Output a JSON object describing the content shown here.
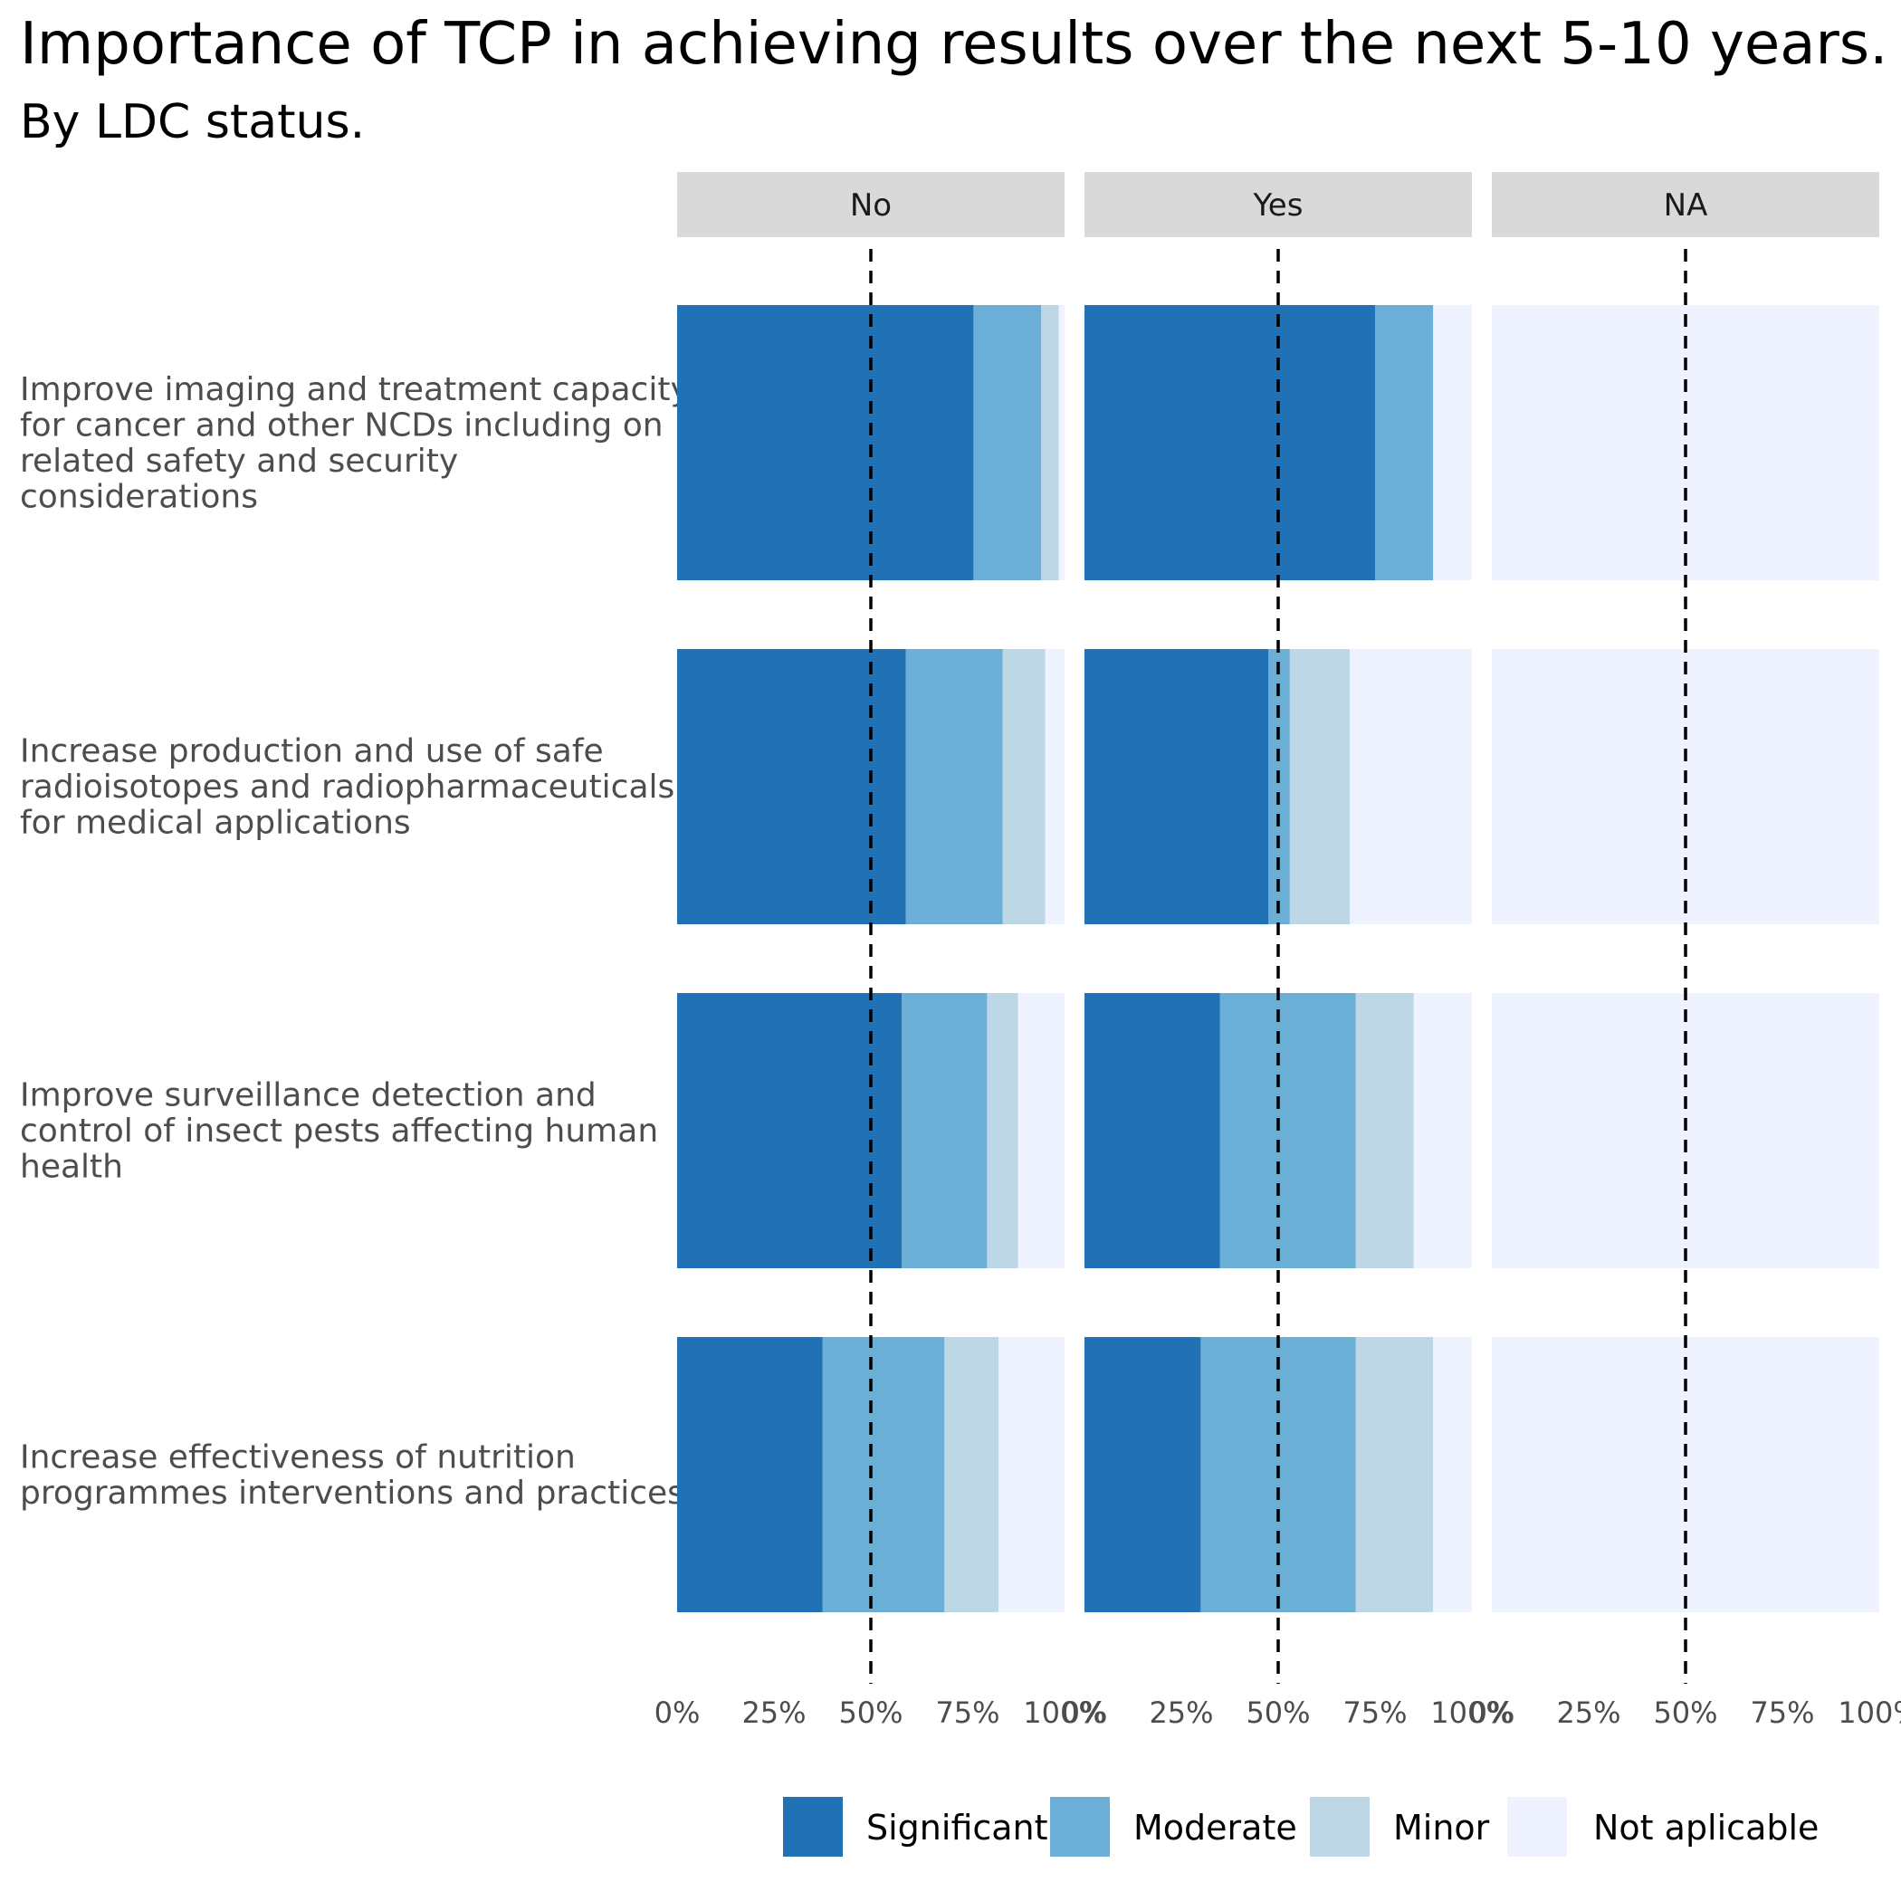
{
  "chart_data": {
    "type": "bar",
    "orientation": "horizontal",
    "stacked": true,
    "title": "Importance of TCP in achieving results over the next 5-10 years.",
    "subtitle": "By LDC status.",
    "facets": [
      "No",
      "Yes",
      "NA"
    ],
    "categories": [
      "Improve imaging and treatment capacity for cancer and other NCDs including on related safety and security considerations",
      "Increase production and use of safe radioisotopes and radiopharmaceuticals for medical applications",
      "Improve surveillance detection and control of insect pests affecting human health",
      "Increase effectiveness of nutrition programmes interventions and practices"
    ],
    "category_label_lines": [
      [
        "Improve imaging and treatment capacity",
        "for cancer and other NCDs including on",
        "related safety and security",
        "considerations"
      ],
      [
        "Increase production and use of safe",
        "radioisotopes and radiopharmaceuticals",
        "for medical applications"
      ],
      [
        "Improve surveillance detection and",
        "control of insect pests affecting human",
        "health"
      ],
      [
        "Increase effectiveness of nutrition",
        "programmes interventions and practices"
      ]
    ],
    "series_names": [
      "Significant",
      "Moderate",
      "Minor",
      "Not aplicable"
    ],
    "colors": [
      "#2171b5",
      "#6baed6",
      "#bdd7e7",
      "#eff3ff"
    ],
    "data": {
      "No": [
        [
          76.5,
          17.5,
          4.5,
          1.5
        ],
        [
          59,
          25,
          11,
          5
        ],
        [
          58,
          22,
          8,
          12
        ],
        [
          37.5,
          31.5,
          14,
          17
        ]
      ],
      "Yes": [
        [
          75,
          15,
          0,
          10
        ],
        [
          47.5,
          5.5,
          15.5,
          31.5
        ],
        [
          35,
          35,
          15,
          15
        ],
        [
          30,
          40,
          20,
          10
        ]
      ],
      "NA": [
        [
          0,
          0,
          0,
          100
        ],
        [
          0,
          0,
          0,
          100
        ],
        [
          0,
          0,
          0,
          100
        ],
        [
          0,
          0,
          0,
          100
        ]
      ]
    },
    "x_ticks": [
      "0%",
      "25%",
      "50%",
      "75%",
      "100%"
    ],
    "xlim": [
      0,
      100
    ],
    "reference_line": 50,
    "legend_position": "bottom",
    "grid": false
  }
}
